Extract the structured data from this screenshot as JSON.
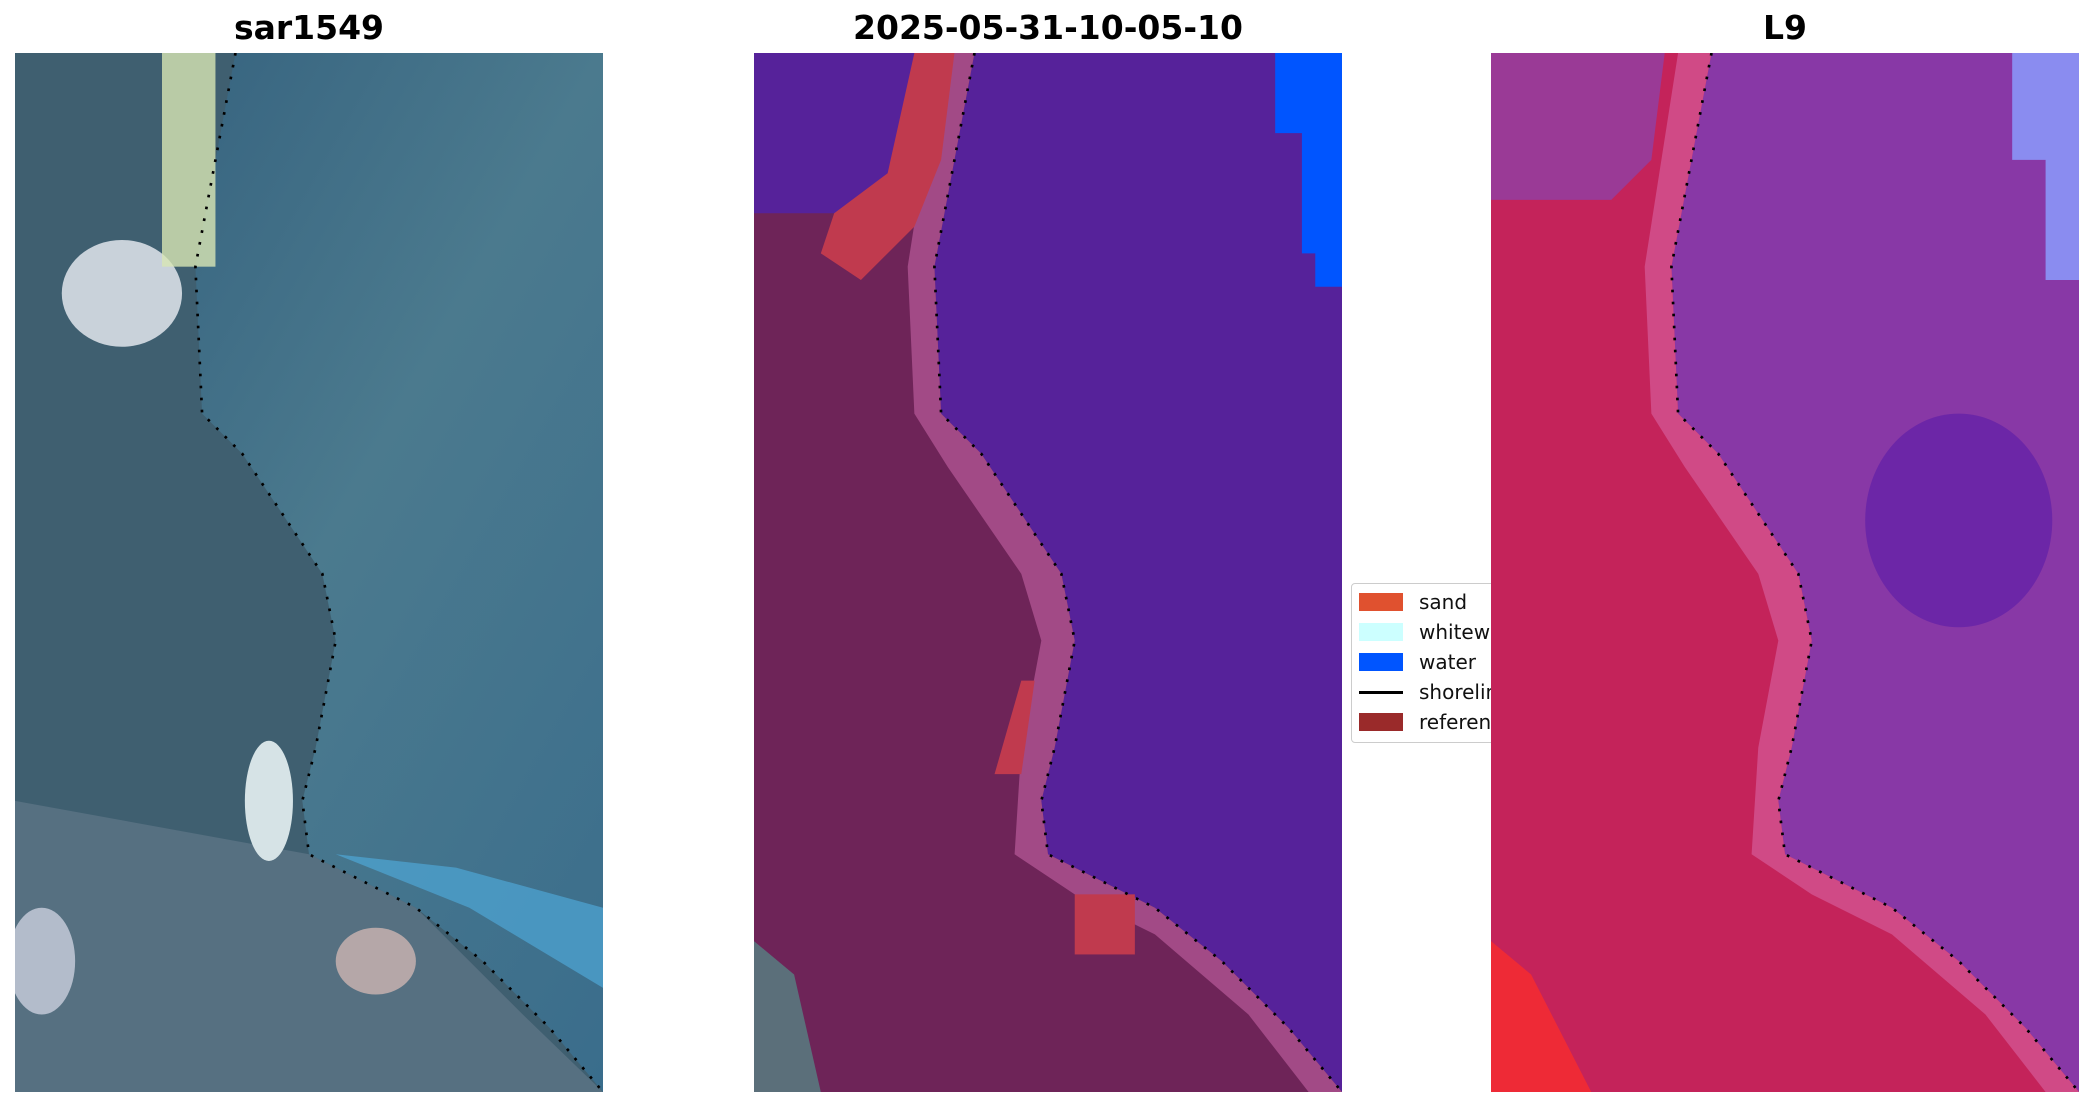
{
  "panels": [
    {
      "title": "sar1549"
    },
    {
      "title": "2025-05-31-10-05-10"
    },
    {
      "title": "L9"
    }
  ],
  "legend": {
    "items": [
      {
        "label": "sand",
        "color": "#e0512f"
      },
      {
        "label": "whitewater",
        "color": "#ccffff"
      },
      {
        "label": "water",
        "color": "#0055ff"
      },
      {
        "label": "shoreline",
        "color": "#000000"
      },
      {
        "label": "reference",
        "color": "#9a2a2a"
      }
    ]
  }
}
